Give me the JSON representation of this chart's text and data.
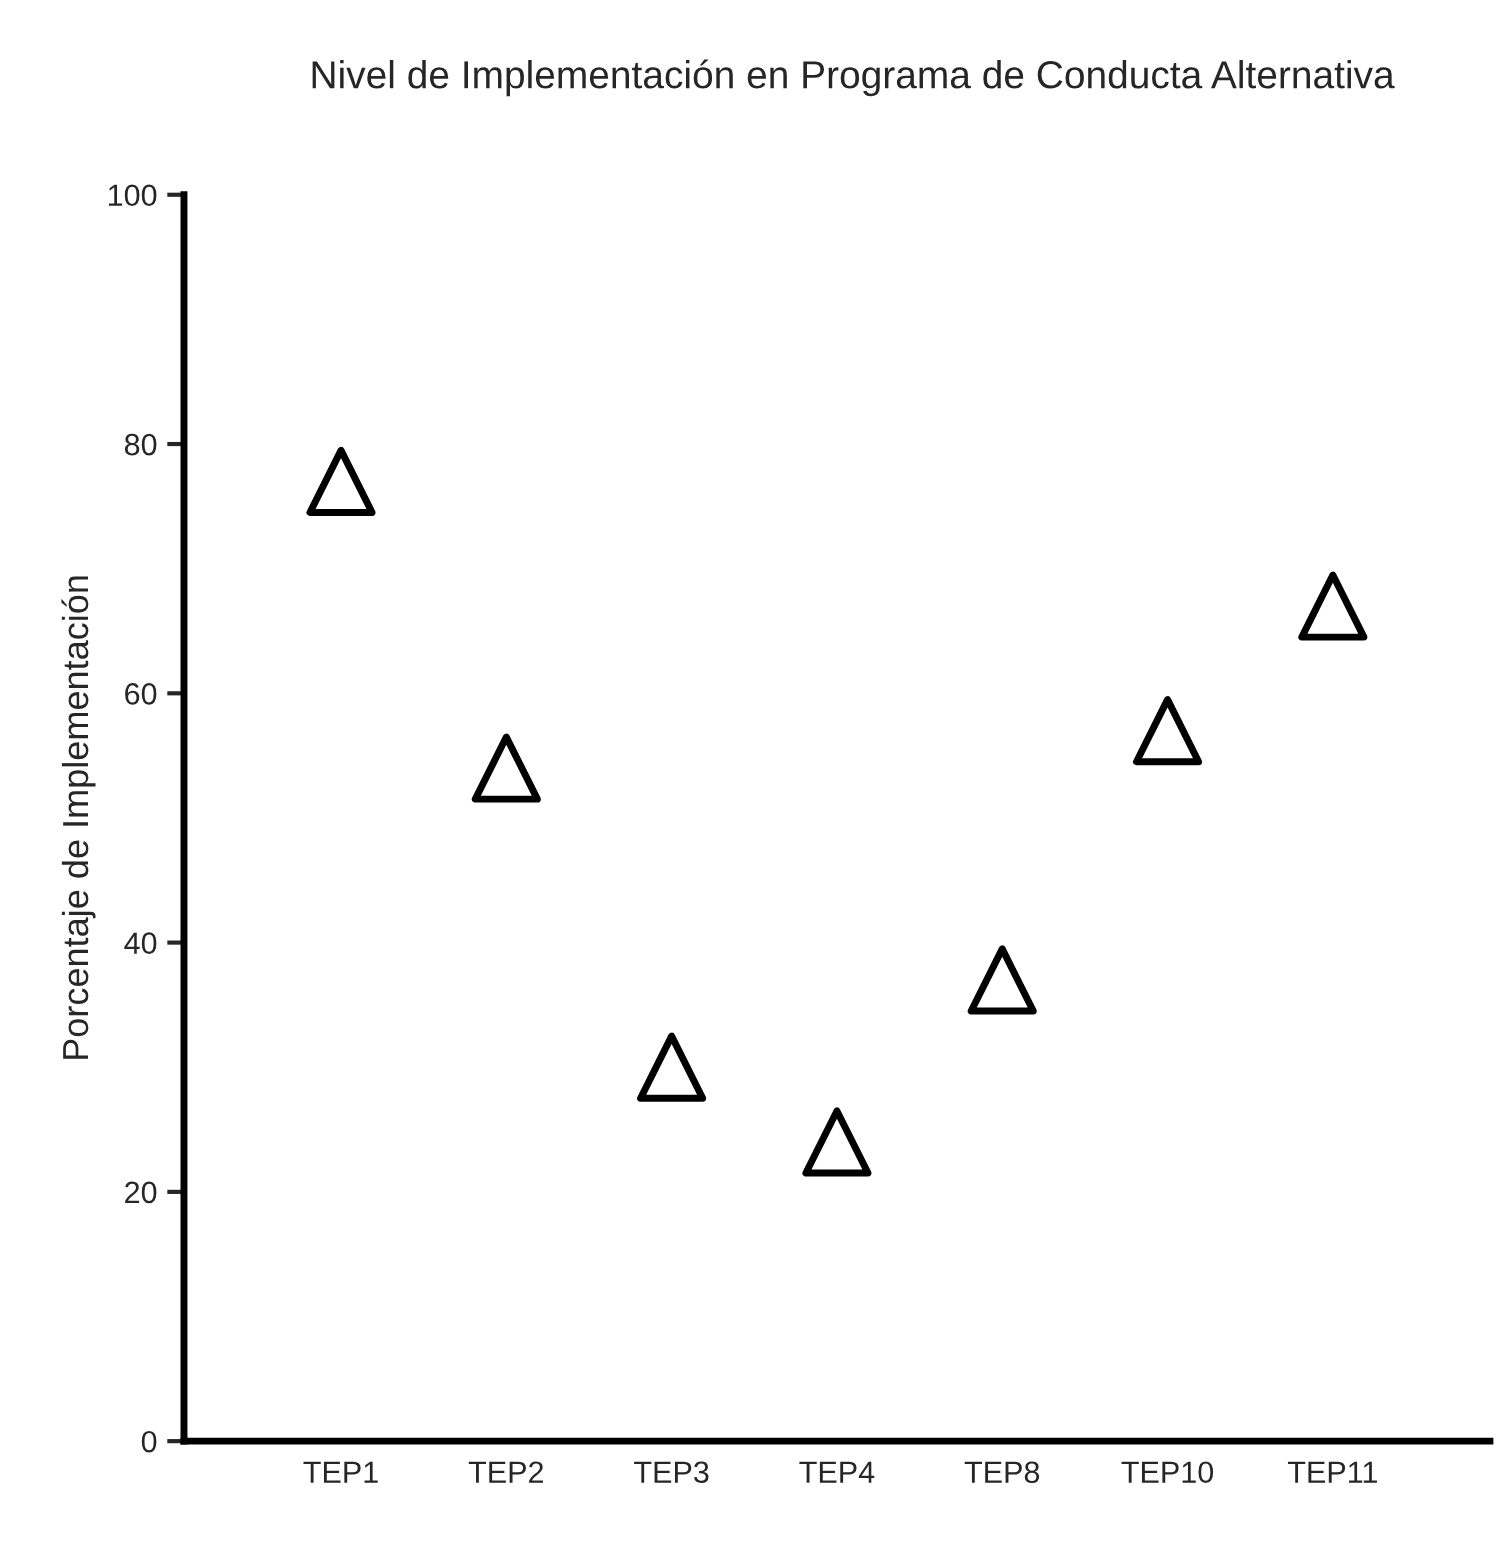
{
  "chart_data": {
    "type": "scatter",
    "title": "Nivel de Implementación en Programa de Conducta Alternativa",
    "ylabel": "Porcentaje de Implementación",
    "categories": [
      "TEP1",
      "TEP2",
      "TEP3",
      "TEP4",
      "TEP8",
      "TEP10",
      "TEP11"
    ],
    "values": [
      77,
      54,
      30,
      24,
      37,
      57,
      67
    ],
    "color": "#000000",
    "marker": "triangle",
    "ylim": [
      0,
      100
    ],
    "yticks": [
      0,
      20,
      40,
      60,
      80,
      100
    ],
    "grid": false
  }
}
